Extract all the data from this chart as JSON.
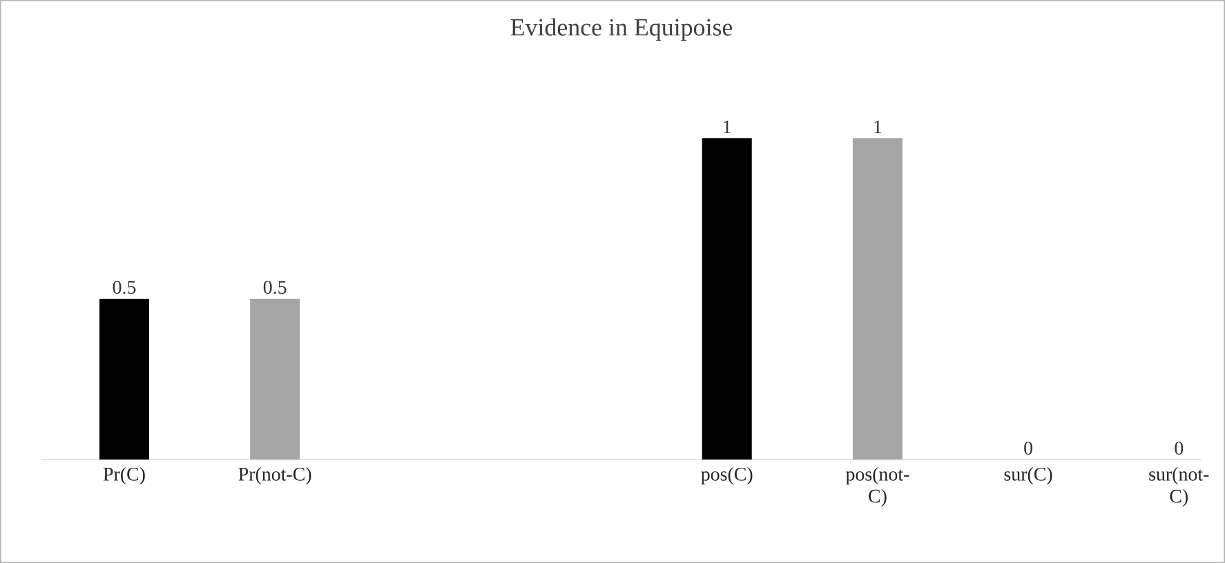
{
  "chart_data": {
    "type": "bar",
    "title": "Evidence in Equipoise",
    "categories": [
      "Pr(C)",
      "Pr(not-C)",
      null,
      null,
      "pos(C)",
      "pos(not-C)",
      "sur(C)",
      "sur(not-C)"
    ],
    "values": [
      0.5,
      0.5,
      null,
      null,
      1,
      1,
      0,
      0
    ],
    "colors": [
      "#000000",
      "#a5a5a5",
      null,
      null,
      "#000000",
      "#a5a5a5",
      "#000000",
      "#a5a5a5"
    ],
    "data_labels": true
  }
}
